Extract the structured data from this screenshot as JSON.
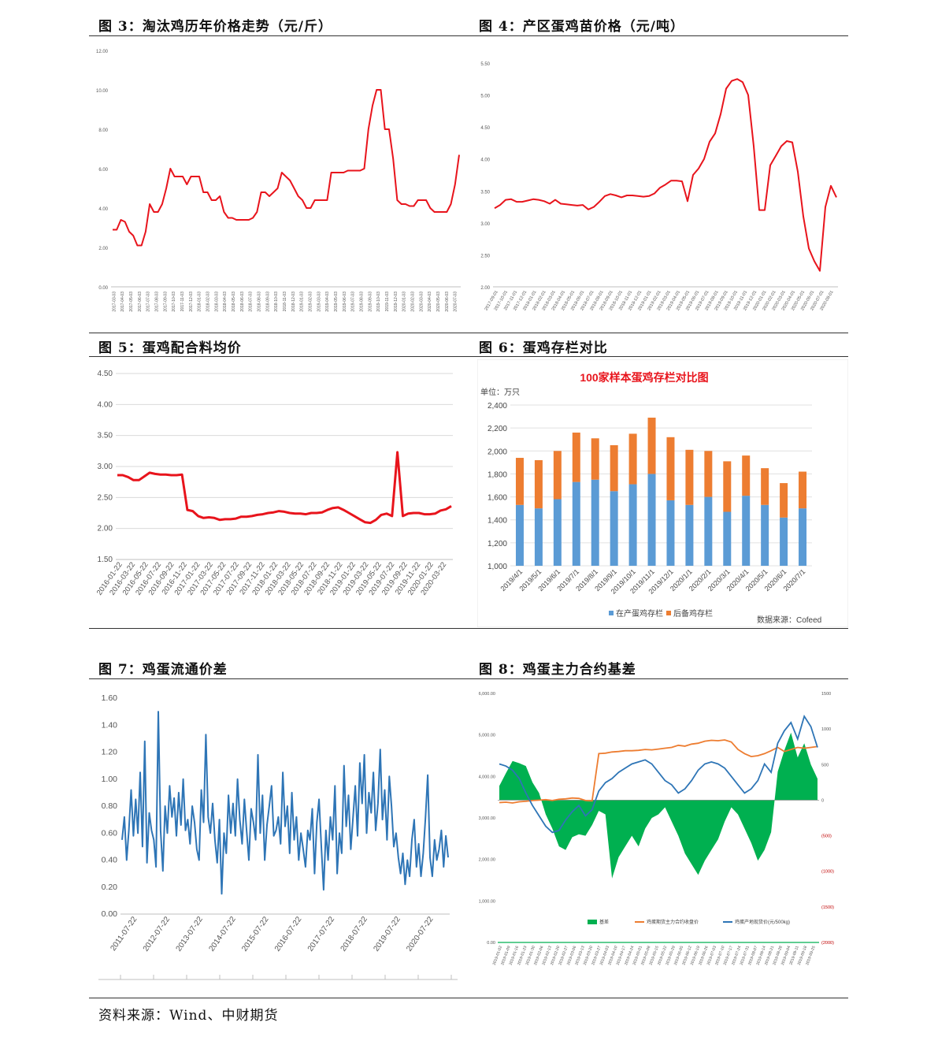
{
  "titles": {
    "fig3": "图 3：淘汰鸡历年价格走势（元/斤）",
    "fig4": "图 4：产区蛋鸡苗价格（元/吨）",
    "fig5": "图 5：蛋鸡配合料均价",
    "fig6": "图 6：蛋鸡存栏对比",
    "fig7": "图 7：鸡蛋流通价差",
    "fig8": "图 8：鸡蛋主力合约基差"
  },
  "source": "资料来源：Wind、中财期货",
  "colors": {
    "red": "#e8141c",
    "blue": "#2e75b6",
    "orange": "#ed7d31",
    "green": "#00b050",
    "bar_blue": "#5b9bd5",
    "bar_orange": "#ed7d31"
  },
  "chart_data": [
    {
      "id": "fig3",
      "type": "line",
      "yticks": [
        "0.00",
        "2.00",
        "4.00",
        "6.00",
        "8.00",
        "10.00",
        "12.00"
      ],
      "ylim": [
        0,
        12
      ],
      "xticks": [
        "2017-03-03",
        "2017-04-03",
        "2017-05-03",
        "2017-06-03",
        "2017-07-03",
        "2017-08-03",
        "2017-09-03",
        "2017-10-03",
        "2017-11-03",
        "2017-12-03",
        "2018-01-03",
        "2018-02-03",
        "2018-03-03",
        "2018-04-03",
        "2018-05-03",
        "2018-06-03",
        "2018-07-03",
        "2018-08-03",
        "2018-09-03",
        "2018-10-03",
        "2018-11-03",
        "2018-12-03",
        "2019-01-03",
        "2019-02-03",
        "2019-03-03",
        "2019-04-03",
        "2019-05-03",
        "2019-06-03",
        "2019-07-03",
        "2019-08-03",
        "2019-09-03",
        "2019-10-03",
        "2019-11-03",
        "2019-12-03",
        "2020-01-03",
        "2020-02-03",
        "2020-03-03",
        "2020-04-03",
        "2020-05-03",
        "2020-06-03",
        "2020-07-03"
      ],
      "series": [
        {
          "values": [
            2.9,
            2.9,
            3.4,
            3.3,
            2.8,
            2.6,
            2.1,
            2.1,
            2.8,
            4.2,
            3.8,
            3.8,
            4.2,
            5.0,
            6.0,
            5.6,
            5.6,
            5.6,
            5.2,
            5.6,
            5.6,
            5.6,
            4.8,
            4.8,
            4.4,
            4.4,
            4.6,
            3.8,
            3.5,
            3.5,
            3.4,
            3.4,
            3.4,
            3.4,
            3.5,
            3.8,
            4.8,
            4.8,
            4.6,
            4.8,
            5.0,
            5.8,
            5.6,
            5.4,
            5.0,
            4.6,
            4.4,
            4.0,
            4.0,
            4.4,
            4.4,
            4.4,
            4.4,
            5.8,
            5.8,
            5.8,
            5.8,
            5.9,
            5.9,
            5.9,
            5.9,
            6.0,
            8.0,
            9.2,
            10.0,
            10.0,
            8.0,
            8.0,
            6.5,
            4.4,
            4.2,
            4.2,
            4.1,
            4.1,
            4.4,
            4.4,
            4.4,
            4.0,
            3.8,
            3.8,
            3.8,
            3.8,
            4.2,
            5.2,
            6.7
          ]
        }
      ]
    },
    {
      "id": "fig4",
      "type": "line",
      "yticks": [
        "2.00",
        "2.50",
        "3.00",
        "3.50",
        "4.00",
        "4.50",
        "5.00",
        "5.50"
      ],
      "ylim": [
        2,
        5.5
      ],
      "xticks": [
        "2017-09-01",
        "2017-10-01",
        "2017-11-01",
        "2017-12-01",
        "2018-01-01",
        "2018-02-01",
        "2018-03-01",
        "2018-04-01",
        "2018-05-01",
        "2018-06-01",
        "2018-07-01",
        "2018-08-01",
        "2018-09-01",
        "2018-10-01",
        "2018-11-01",
        "2018-12-01",
        "2019-01-01",
        "2019-02-01",
        "2019-03-01",
        "2019-04-01",
        "2019-05-01",
        "2019-06-01",
        "2019-07-01",
        "2019-08-01",
        "2019-09-01",
        "2019-10-01",
        "2019-11-01",
        "2019-12-01",
        "2020-01-01",
        "2020-02-01",
        "2020-03-01",
        "2020-04-01",
        "2020-05-01",
        "2020-06-01",
        "2020-07-01",
        "2020-08-01"
      ],
      "series": [
        {
          "values": [
            3.23,
            3.28,
            3.36,
            3.37,
            3.33,
            3.33,
            3.35,
            3.37,
            3.36,
            3.34,
            3.3,
            3.36,
            3.3,
            3.29,
            3.28,
            3.27,
            3.28,
            3.21,
            3.25,
            3.33,
            3.42,
            3.45,
            3.43,
            3.4,
            3.43,
            3.43,
            3.42,
            3.41,
            3.42,
            3.46,
            3.55,
            3.6,
            3.66,
            3.66,
            3.65,
            3.34,
            3.75,
            3.85,
            4.0,
            4.27,
            4.4,
            4.7,
            5.1,
            5.22,
            5.25,
            5.2,
            5.0,
            4.2,
            3.2,
            3.2,
            3.9,
            4.05,
            4.2,
            4.28,
            4.26,
            3.8,
            3.1,
            2.6,
            2.4,
            2.25,
            3.25,
            3.58,
            3.4
          ]
        }
      ]
    },
    {
      "id": "fig5",
      "type": "line",
      "yticks": [
        "1.50",
        "2.00",
        "2.50",
        "3.00",
        "3.50",
        "4.00",
        "4.50"
      ],
      "ylim": [
        1.5,
        4.5
      ],
      "xticks": [
        "2016-01-22",
        "2016-03-22",
        "2016-05-22",
        "2016-07-22",
        "2016-09-22",
        "2016-11-22",
        "2017-01-22",
        "2017-03-22",
        "2017-05-22",
        "2017-07-22",
        "2017-09-22",
        "2017-11-22",
        "2018-01-22",
        "2018-03-22",
        "2018-05-22",
        "2018-07-22",
        "2018-09-22",
        "2018-11-22",
        "2019-01-22",
        "2019-03-22",
        "2019-05-22",
        "2019-07-22",
        "2019-09-22",
        "2019-11-22",
        "2020-01-22",
        "2020-03-22"
      ],
      "series": [
        {
          "values": [
            2.86,
            2.86,
            2.83,
            2.78,
            2.78,
            2.84,
            2.9,
            2.88,
            2.87,
            2.87,
            2.86,
            2.86,
            2.87,
            2.3,
            2.28,
            2.2,
            2.17,
            2.18,
            2.17,
            2.14,
            2.15,
            2.15,
            2.16,
            2.19,
            2.19,
            2.2,
            2.22,
            2.23,
            2.25,
            2.26,
            2.28,
            2.27,
            2.25,
            2.24,
            2.24,
            2.23,
            2.25,
            2.25,
            2.26,
            2.3,
            2.33,
            2.34,
            2.3,
            2.25,
            2.2,
            2.15,
            2.1,
            2.09,
            2.14,
            2.22,
            2.24,
            2.2,
            3.23,
            2.2,
            2.24,
            2.25,
            2.25,
            2.23,
            2.23,
            2.24,
            2.29,
            2.31,
            2.36
          ]
        }
      ]
    },
    {
      "id": "fig6",
      "type": "bar",
      "chart_title": "100家样本蛋鸡存栏对比图",
      "unit": "单位：万只",
      "source": "数据来源：Cofeed",
      "yticks": [
        "1,000",
        "1,200",
        "1,400",
        "1,600",
        "1,800",
        "2,000",
        "2,200",
        "2,400"
      ],
      "ylim": [
        1000,
        2400
      ],
      "categories": [
        "2019/4/1",
        "2019/5/1",
        "2019/6/1",
        "2019/7/1",
        "2019/8/1",
        "2019/9/1",
        "2019/10/1",
        "2019/11/1",
        "2019/12/1",
        "2020/1/1",
        "2020/2/1",
        "2020/3/1",
        "2020/4/1",
        "2020/5/1",
        "2020/6/1",
        "2020/7/1"
      ],
      "series": [
        {
          "name": "在产蛋鸡存栏",
          "values": [
            1530,
            1500,
            1580,
            1730,
            1750,
            1650,
            1710,
            1800,
            1570,
            1530,
            1600,
            1470,
            1610,
            1530,
            1420,
            1500
          ]
        },
        {
          "name": "后备鸡存栏",
          "values": [
            410,
            420,
            420,
            430,
            360,
            400,
            440,
            490,
            550,
            480,
            400,
            440,
            350,
            320,
            300,
            320
          ]
        }
      ]
    },
    {
      "id": "fig7",
      "type": "line",
      "yticks": [
        "0.00",
        "0.20",
        "0.40",
        "0.60",
        "0.80",
        "1.00",
        "1.20",
        "1.40",
        "1.60"
      ],
      "ylim": [
        0,
        1.6
      ],
      "xticks": [
        "2011-07-22",
        "2012-07-22",
        "2013-07-22",
        "2014-07-22",
        "2015-07-22",
        "2016-07-22",
        "2017-07-22",
        "2018-07-22",
        "2019-07-22",
        "2020-07-22"
      ],
      "series": [
        {
          "values": [
            0.55,
            0.72,
            0.4,
            0.62,
            0.92,
            0.58,
            0.85,
            0.6,
            1.05,
            0.5,
            1.28,
            0.38,
            0.75,
            0.62,
            0.55,
            0.35,
            1.5,
            0.62,
            0.32,
            0.8,
            0.6,
            0.95,
            0.72,
            0.86,
            0.58,
            0.9,
            0.66,
            1.0,
            0.62,
            0.7,
            0.52,
            0.8,
            0.68,
            0.48,
            0.4,
            0.92,
            0.68,
            1.33,
            0.72,
            0.6,
            0.82,
            0.55,
            0.38,
            0.7,
            0.15,
            0.6,
            0.45,
            0.88,
            0.6,
            0.82,
            0.58,
            1.0,
            0.7,
            0.52,
            0.85,
            0.62,
            0.4,
            0.78,
            0.68,
            0.55,
            1.18,
            0.6,
            0.88,
            0.4,
            0.66,
            0.8,
            0.95,
            0.58,
            0.62,
            0.72,
            0.52,
            1.05,
            0.65,
            0.8,
            0.45,
            0.9,
            0.55,
            0.72,
            0.4,
            0.6,
            0.48,
            0.35,
            0.62,
            0.55,
            0.78,
            0.3,
            0.68,
            0.85,
            0.5,
            0.18,
            0.62,
            0.4,
            0.72,
            0.55,
            0.95,
            0.3,
            0.6,
            0.45,
            1.1,
            0.65,
            0.88,
            0.48,
            0.72,
            0.95,
            0.58,
            1.12,
            0.82,
            1.18,
            0.6,
            0.9,
            0.75,
            1.05,
            0.62,
            0.82,
            1.22,
            0.7,
            0.92,
            0.55,
            1.02,
            0.8,
            0.5,
            0.6,
            0.42,
            0.3,
            0.45,
            0.22,
            0.4,
            0.28,
            0.55,
            0.7,
            0.35,
            0.52,
            0.28,
            0.45,
            0.72,
            1.03,
            0.42,
            0.28,
            0.55,
            0.4,
            0.48,
            0.62,
            0.35,
            0.58,
            0.42
          ]
        }
      ]
    },
    {
      "id": "fig8",
      "type": "area",
      "yticks_left": [
        "0.00",
        "1,000.00",
        "2,000.00",
        "3,000.00",
        "4,000.00",
        "5,000.00",
        "6,000.00"
      ],
      "ylim_left": [
        0,
        6000
      ],
      "yticks_right": [
        "(2000)",
        "(1500)",
        "(1000)",
        "(500)",
        "0",
        "500",
        "1000",
        "1500"
      ],
      "ylim_right": [
        -2000,
        1500
      ],
      "xticks": [
        "2019-01-02",
        "2019-01-09",
        "2019-01-16",
        "2019-01-23",
        "2019-01-30",
        "2019-02-06",
        "2019-02-13",
        "2019-02-20",
        "2019-02-27",
        "2019-03-06",
        "2019-03-13",
        "2019-03-20",
        "2019-03-27",
        "2019-04-03",
        "2019-04-10",
        "2019-04-17",
        "2019-04-24",
        "2019-05-01",
        "2019-05-08",
        "2019-05-15",
        "2019-05-22",
        "2019-05-29",
        "2019-06-05",
        "2019-06-12",
        "2019-06-19",
        "2019-06-26",
        "2019-07-03",
        "2019-07-10",
        "2019-07-17",
        "2019-07-24",
        "2019-07-31",
        "2019-08-07",
        "2019-08-14",
        "2019-08-21",
        "2019-08-28",
        "2019-09-04",
        "2019-09-11",
        "2019-09-18",
        "2019-09-25"
      ],
      "series": [
        {
          "name": "基差",
          "axis": "right",
          "values": [
            200,
            380,
            550,
            520,
            480,
            250,
            100,
            -200,
            -400,
            -650,
            -700,
            -520,
            -480,
            -500,
            -350,
            -150,
            -200,
            -1100,
            -800,
            -650,
            -500,
            -650,
            -400,
            -250,
            -200,
            -100,
            -300,
            -500,
            -750,
            -900,
            -1050,
            -850,
            -700,
            -550,
            -300,
            -100,
            -200,
            -400,
            -600,
            -850,
            -700,
            -450,
            400,
            700,
            950,
            600,
            800,
            500,
            300
          ]
        },
        {
          "name": "鸡蛋期货主力合约收盘价",
          "axis": "left",
          "values": [
            3370,
            3380,
            3360,
            3390,
            3400,
            3420,
            3430,
            3440,
            3420,
            3450,
            3460,
            3480,
            3470,
            3420,
            3410,
            4550,
            4560,
            4590,
            4600,
            4620,
            4620,
            4630,
            4650,
            4640,
            4660,
            4680,
            4700,
            4750,
            4730,
            4780,
            4800,
            4850,
            4870,
            4860,
            4880,
            4830,
            4650,
            4550,
            4480,
            4500,
            4550,
            4620,
            4700,
            4600,
            4650,
            4700,
            4680,
            4700,
            4720
          ]
        },
        {
          "name": "鸡蛋产地现货价(元/500kg)",
          "axis": "left",
          "values": [
            4300,
            4250,
            4150,
            3950,
            3600,
            3300,
            3050,
            2800,
            2650,
            2700,
            2950,
            3150,
            3300,
            3050,
            3200,
            3650,
            3850,
            3950,
            4100,
            4200,
            4300,
            4350,
            4400,
            4300,
            4100,
            3900,
            3800,
            3600,
            3700,
            3900,
            4150,
            4300,
            4350,
            4300,
            4200,
            4000,
            3800,
            3600,
            3700,
            3900,
            4300,
            4100,
            4800,
            5100,
            5300,
            4900,
            5450,
            5200,
            4700
          ]
        }
      ]
    }
  ]
}
